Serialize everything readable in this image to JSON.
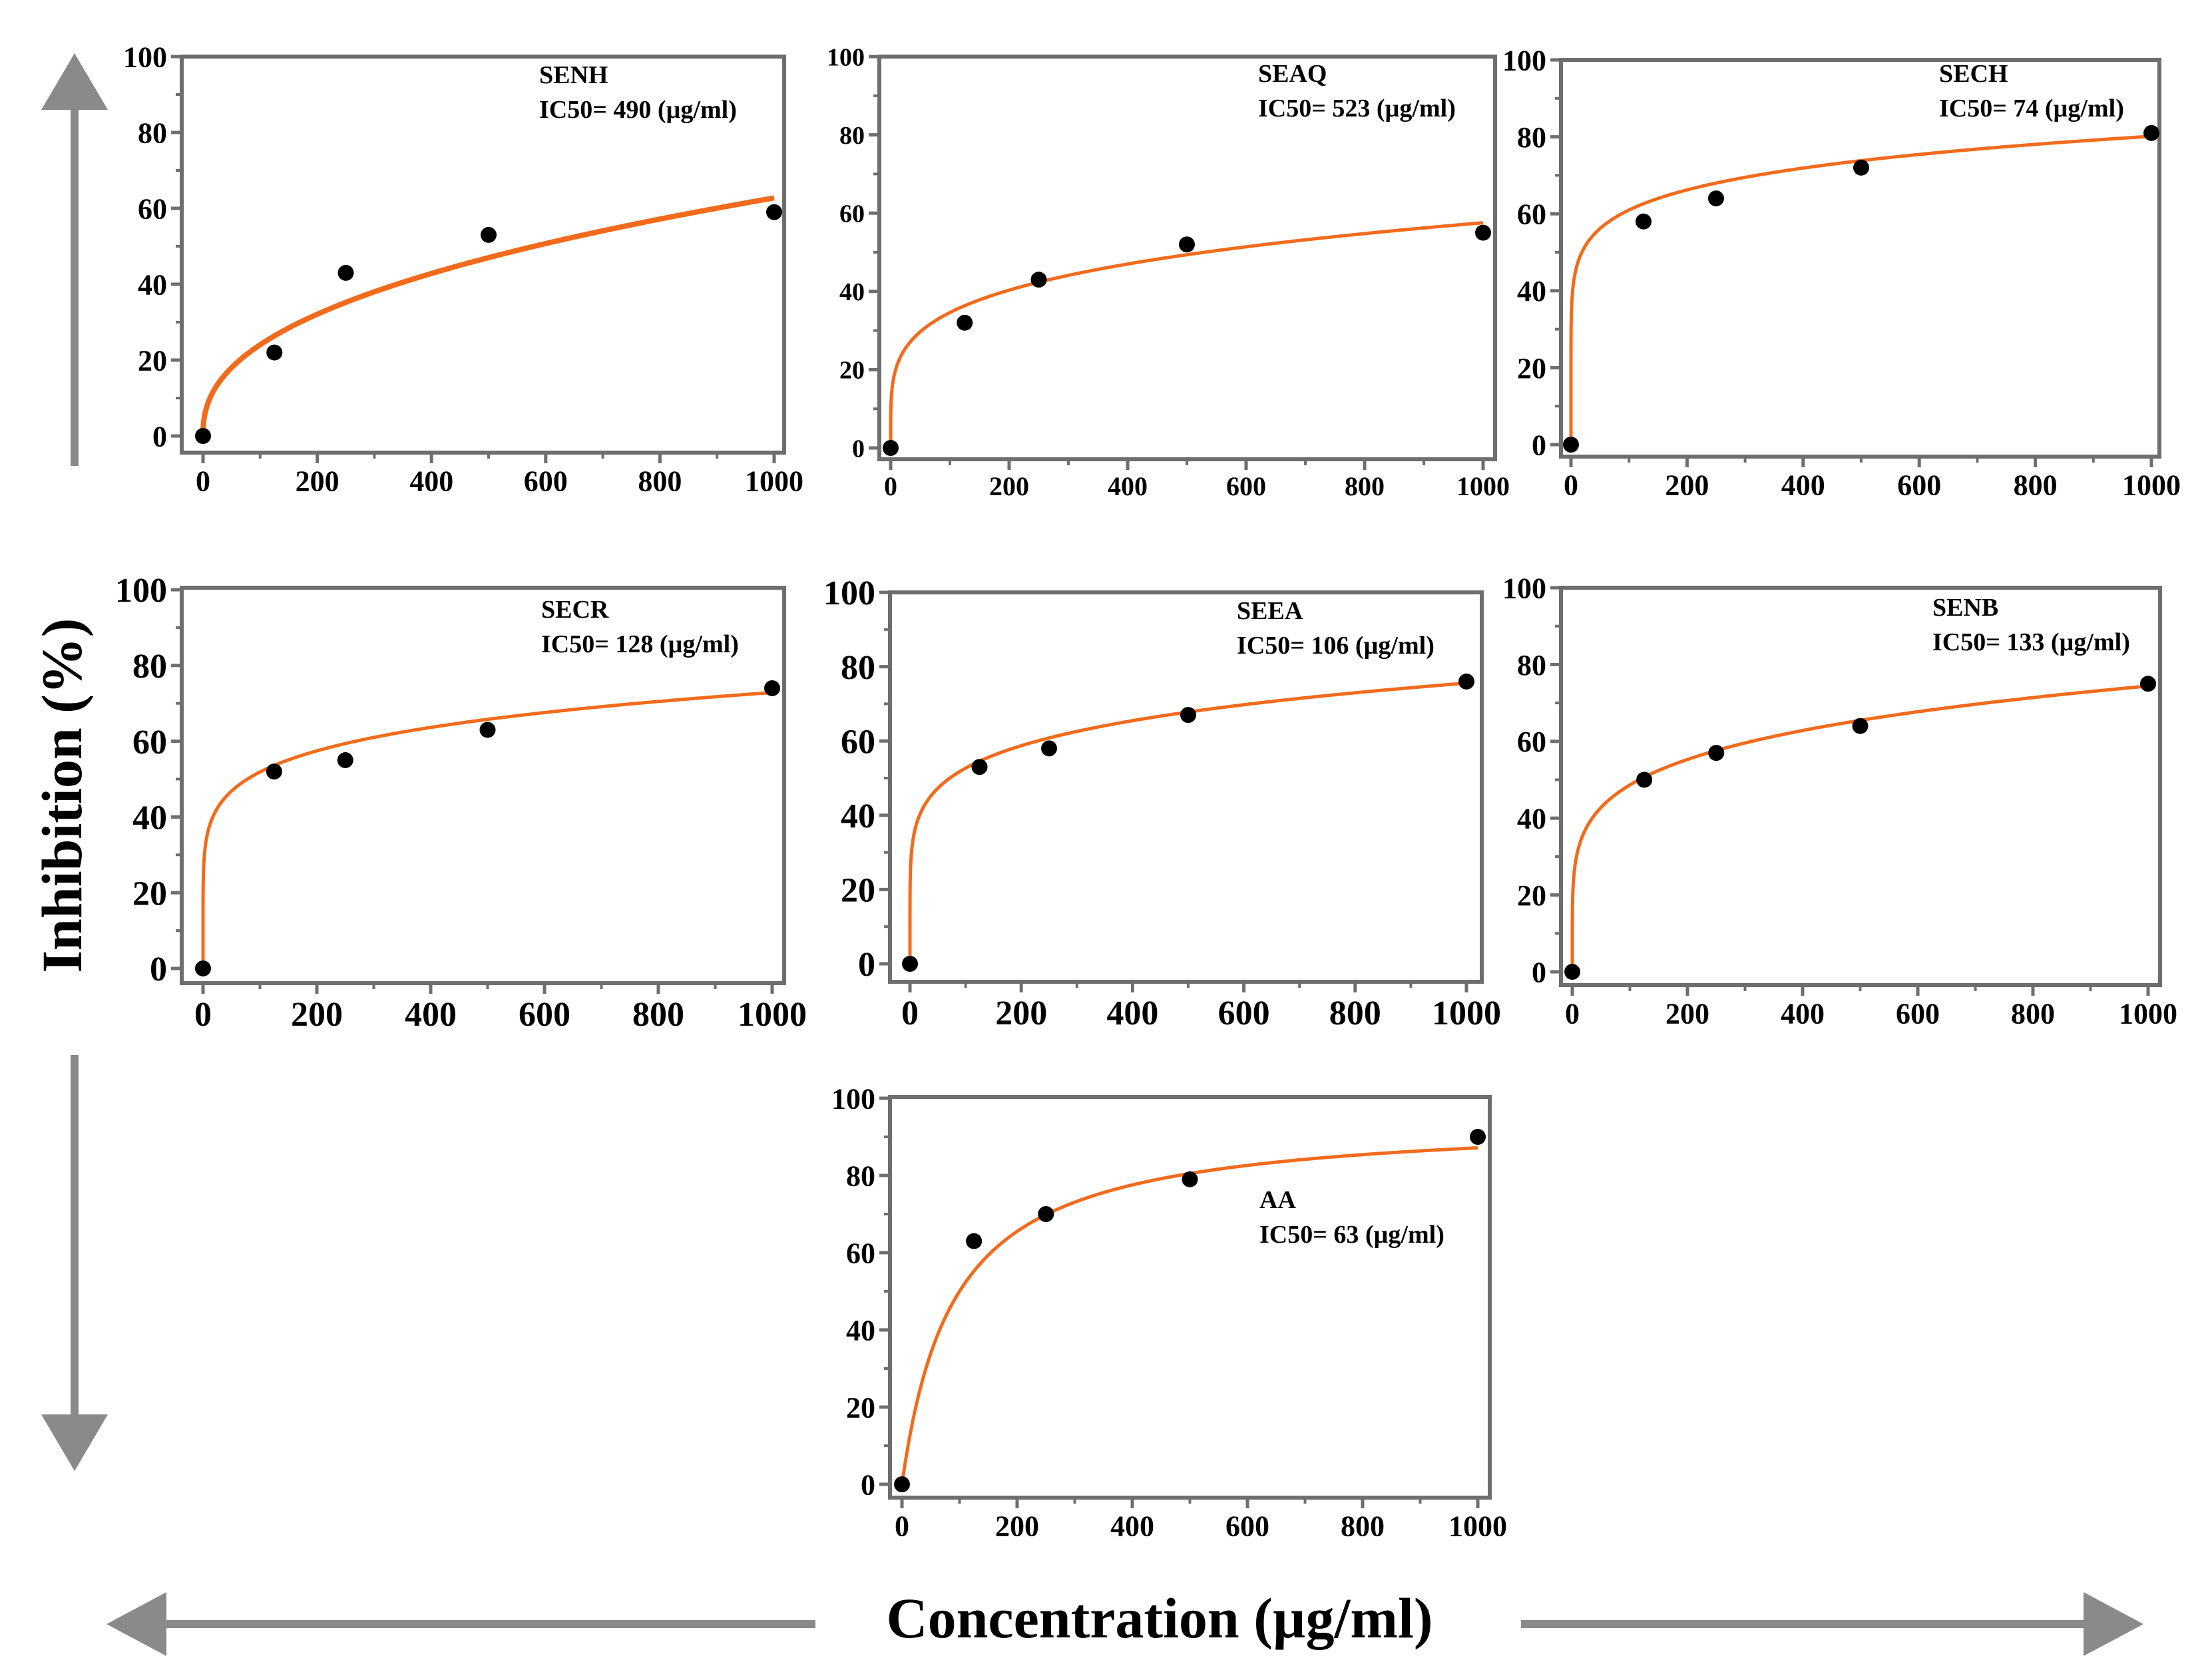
{
  "figure": {
    "ylabel": "Inhibition (%)",
    "xlabel": "Concentration (µg/ml)"
  },
  "style": {
    "axis_color": "#6e6e6e",
    "fit_color": "#f26b1d",
    "point_color": "#000000",
    "arrow_color": "#8a8a8a"
  },
  "chart_data": [
    {
      "type": "scatter",
      "name": "SENH",
      "title": "SENH",
      "annotation": "IC50= 490 (µg/ml)",
      "x": [
        0,
        125,
        250,
        500,
        1000
      ],
      "y": [
        0,
        22,
        43,
        53,
        59
      ],
      "fit": {
        "model": "power",
        "a": 3.53,
        "b": 0.4166
      },
      "xlim": [
        0,
        1000
      ],
      "ylim": [
        0,
        100
      ],
      "xticks": [
        "0",
        "200",
        "400",
        "600",
        "800",
        "1000"
      ],
      "yticks": [
        "0",
        "20",
        "40",
        "60",
        "80",
        "100"
      ]
    },
    {
      "type": "scatter",
      "name": "SEAQ",
      "title": "SEAQ",
      "annotation": "IC50= 523 (µg/ml)",
      "x": [
        0,
        125,
        250,
        500,
        1000
      ],
      "y": [
        0,
        32,
        43,
        52,
        55
      ],
      "fit": {
        "model": "power",
        "a": 12.51,
        "b": 0.2209
      },
      "xlim": [
        0,
        1000
      ],
      "ylim": [
        0,
        100
      ],
      "xticks": [
        "0",
        "200",
        "400",
        "600",
        "800",
        "1000"
      ],
      "yticks": [
        "0",
        "20",
        "40",
        "60",
        "80",
        "100"
      ]
    },
    {
      "type": "scatter",
      "name": "SECH",
      "title": "SECH",
      "annotation": "IC50= 74 (µg/ml)",
      "x": [
        0,
        125,
        250,
        500,
        1000
      ],
      "y": [
        0,
        58,
        64,
        72,
        81
      ],
      "fit": {
        "model": "power",
        "a": 35.3,
        "b": 0.1187
      },
      "xlim": [
        0,
        1000
      ],
      "ylim": [
        0,
        100
      ],
      "xticks": [
        "0",
        "200",
        "400",
        "600",
        "800",
        "1000"
      ],
      "yticks": [
        "0",
        "20",
        "40",
        "60",
        "80",
        "100"
      ]
    },
    {
      "type": "scatter",
      "name": "SECR",
      "title": "SECR",
      "annotation": "IC50= 128 (µg/ml)",
      "x": [
        0,
        125,
        250,
        500,
        1000
      ],
      "y": [
        0,
        52,
        55,
        63,
        74
      ],
      "fit": {
        "model": "power",
        "a": 26.3,
        "b": 0.1475
      },
      "xlim": [
        0,
        1000
      ],
      "ylim": [
        0,
        100
      ],
      "xticks": [
        "0",
        "200",
        "400",
        "600",
        "800",
        "1000"
      ],
      "yticks": [
        "0",
        "20",
        "40",
        "60",
        "80",
        "100"
      ]
    },
    {
      "type": "scatter",
      "name": "SEEA",
      "title": "SEEA",
      "annotation": "IC50= 106 (µg/ml)",
      "x": [
        0,
        125,
        250,
        500,
        1000
      ],
      "y": [
        0,
        53,
        58,
        67,
        76
      ],
      "fit": {
        "model": "power",
        "a": 25.6,
        "b": 0.1567
      },
      "xlim": [
        0,
        1000
      ],
      "ylim": [
        0,
        100
      ],
      "xticks": [
        "0",
        "200",
        "400",
        "600",
        "800",
        "1000"
      ],
      "yticks": [
        "0",
        "20",
        "40",
        "60",
        "80",
        "100"
      ]
    },
    {
      "type": "scatter",
      "name": "SENB",
      "title": "SENB",
      "annotation": "IC50= 133 (µg/ml)",
      "x": [
        0,
        125,
        250,
        500,
        1000
      ],
      "y": [
        0,
        50,
        57,
        64,
        75
      ],
      "fit": {
        "model": "power",
        "a": 20.8,
        "b": 0.1845
      },
      "xlim": [
        0,
        1000
      ],
      "ylim": [
        0,
        100
      ],
      "xticks": [
        "0",
        "200",
        "400",
        "600",
        "800",
        "1000"
      ],
      "yticks": [
        "0",
        "20",
        "40",
        "60",
        "80",
        "100"
      ]
    },
    {
      "type": "scatter",
      "name": "AA",
      "title": "AA",
      "annotation": "IC50= 63 (µg/ml)",
      "x": [
        0,
        125,
        250,
        500,
        1000
      ],
      "y": [
        0,
        63,
        70,
        79,
        90
      ],
      "fit": {
        "model": "hyperbolic",
        "vmax": 95,
        "k": 90
      },
      "xlim": [
        0,
        1000
      ],
      "ylim": [
        0,
        100
      ],
      "xticks": [
        "0",
        "200",
        "400",
        "600",
        "800",
        "1000"
      ],
      "yticks": [
        "0",
        "20",
        "40",
        "60",
        "80",
        "100"
      ]
    }
  ]
}
